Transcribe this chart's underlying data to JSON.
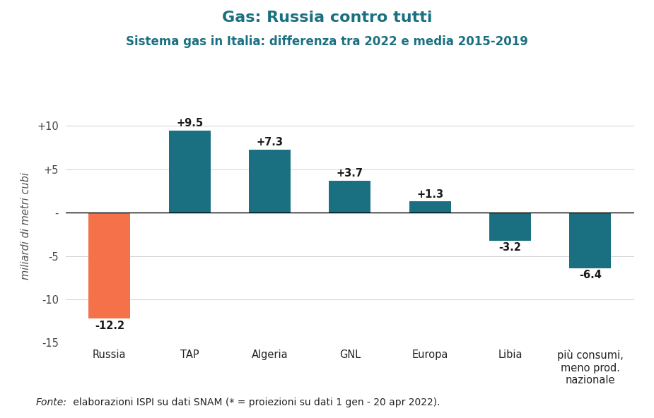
{
  "title": "Gas: Russia contro tutti",
  "subtitle": "Sistema gas in Italia: differenza tra 2022 e media 2015-2019",
  "categories": [
    "Russia",
    "TAP",
    "Algeria",
    "GNL",
    "Europa",
    "Libia",
    "più consumi,\nmeno prod.\nnazionale"
  ],
  "values": [
    -12.2,
    9.5,
    7.3,
    3.7,
    1.3,
    -3.2,
    -6.4
  ],
  "labels": [
    "-12.2",
    "+9.5",
    "+7.3",
    "+3.7",
    "+1.3",
    "-3.2",
    "-6.4"
  ],
  "bar_colors": [
    "#F4714A",
    "#1A7080",
    "#1A7080",
    "#1A7080",
    "#1A7080",
    "#1A7080",
    "#1A7080"
  ],
  "ylabel": "miliardi di metri cubi",
  "ylim": [
    -15,
    12
  ],
  "yticks": [
    -15,
    -10,
    -5,
    0,
    5,
    10
  ],
  "title_color": "#1A7080",
  "subtitle_color": "#1A7080",
  "background_color": "#ffffff",
  "title_fontsize": 16,
  "subtitle_fontsize": 12,
  "label_fontsize": 10.5,
  "tick_fontsize": 10.5,
  "source_fontsize": 10,
  "fonte_text": "Fonte:",
  "source_rest": " elaborazioni ISPI su dati SNAM (* = proiezioni su dati 1 gen - 20 apr 2022)."
}
